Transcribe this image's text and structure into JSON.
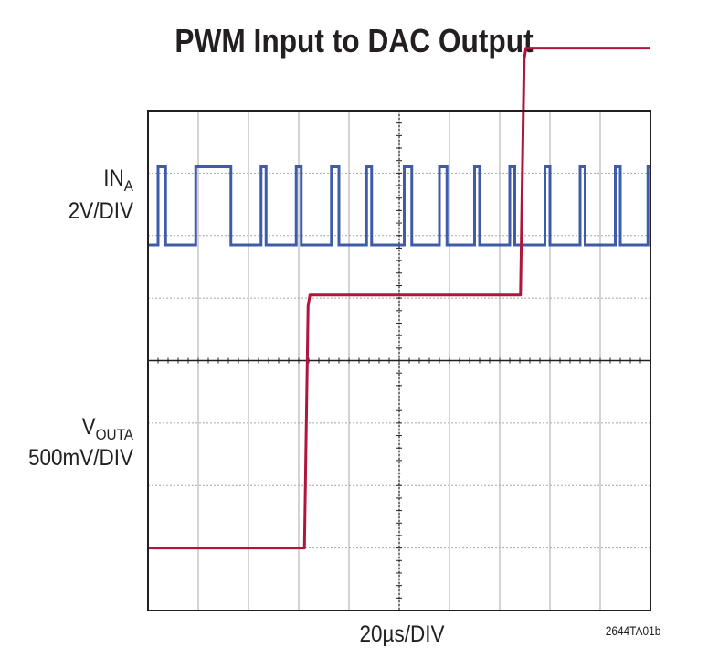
{
  "chart_data": {
    "type": "line",
    "title": "PWM Input to DAC Output",
    "xlabel": "20µs/DIV",
    "figure_id": "2644TA01b",
    "grid": true,
    "divisions": {
      "x": 10,
      "y": 8
    },
    "xlim": [
      0,
      200
    ],
    "x_unit": "µs",
    "channel_labels": {
      "in_a": {
        "main": "IN",
        "sub": "A",
        "scale": "2V/DIV"
      },
      "vout_a": {
        "main": "V",
        "sub": "OUTA",
        "scale": "500mV/DIV"
      }
    },
    "series": [
      {
        "name": "IN_A",
        "color": "#2b4aa0",
        "low_level_div": 5.85,
        "high_level_div": 7.1,
        "transitions_us": [
          4,
          7,
          19,
          33,
          45,
          47,
          59,
          61,
          73,
          76,
          87,
          89,
          102,
          105,
          116,
          119,
          130,
          132,
          144,
          146,
          158,
          160,
          172,
          174,
          186,
          188,
          199
        ],
        "start_level": "low"
      },
      {
        "name": "V_OUTA",
        "color": "#b0153c",
        "steps": [
          {
            "x_us": 0,
            "level_div": 1.0
          },
          {
            "x_us": 63,
            "level_div": 5.05
          },
          {
            "x_us": 149,
            "level_div": 9.0
          }
        ],
        "level_div_pos": [
          1.0,
          5.05,
          9.0
        ]
      }
    ]
  },
  "colors": {
    "grid": "#a8a8a8",
    "frame": "#231f20",
    "in_trace": "#2b4aa0",
    "out_trace": "#b0153c"
  }
}
